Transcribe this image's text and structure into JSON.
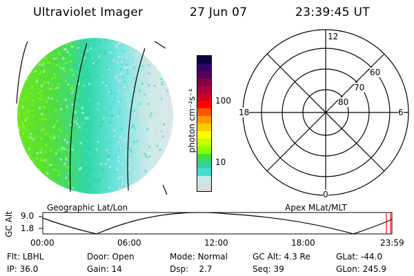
{
  "header": {
    "instrument": "Ultraviolet Imager",
    "date": "27 Jun 07",
    "time": "23:39:45 UT"
  },
  "colorbar": {
    "unit_label": "photon cm⁻²s⁻¹",
    "ticks": [
      "100",
      "10"
    ],
    "colors": [
      "#dcdcdc",
      "#c4e8e8",
      "#40e0d0",
      "#30d0a0",
      "#44dd44",
      "#88ff00",
      "#c8ff00",
      "#ffff00",
      "#ffcc00",
      "#ff9900",
      "#ff5500",
      "#ff0000",
      "#cc0022",
      "#aa0044",
      "#880044",
      "#550055",
      "#330066",
      "#100040"
    ]
  },
  "globe_panel": {
    "label": "Geographic Lat/Lon"
  },
  "polar_panel": {
    "label": "Apex MLat/MLT",
    "mlt_labels": {
      "top": "12",
      "bottom": "0",
      "left": "18",
      "right": "6"
    },
    "lat_labels": [
      "60",
      "70",
      "80"
    ]
  },
  "timeline": {
    "axis_label": "GC Alt",
    "y_ticks": [
      "9.0",
      "1.8"
    ],
    "x_ticks": [
      "00:00",
      "06:00",
      "12:00",
      "18:00",
      "23:59"
    ],
    "marker_color": "#ff0000"
  },
  "status": {
    "row1": [
      {
        "label": "Flt:",
        "value": "LBHL"
      },
      {
        "label": "Door:",
        "value": "Open"
      },
      {
        "label": "Mode:",
        "value": "Normal"
      },
      {
        "label": "GC Alt:",
        "value": "4.3 Re"
      },
      {
        "label": "GLat:",
        "value": "-44.0"
      }
    ],
    "row2": [
      {
        "label": "IP:",
        "value": "36.0"
      },
      {
        "label": "Gain:",
        "value": "14"
      },
      {
        "label": "Dsp:",
        "value": "2.7"
      },
      {
        "label": "Seq:",
        "value": "39"
      },
      {
        "label": "GLon:",
        "value": "245.9"
      }
    ]
  }
}
